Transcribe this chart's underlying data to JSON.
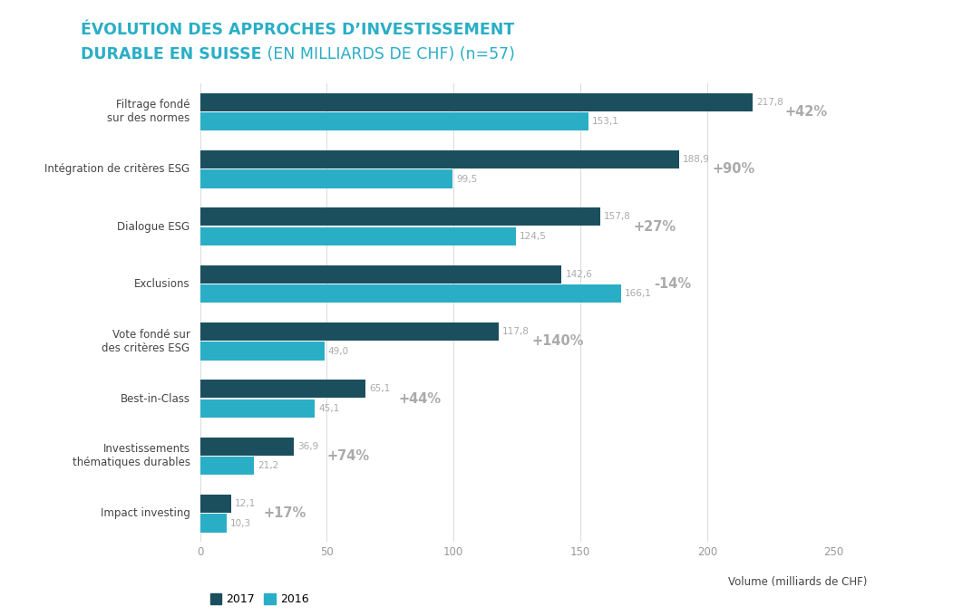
{
  "categories": [
    "Filtrage fondé\nsur des normes",
    "Intégration de critères ESG",
    "Dialogue ESG",
    "Exclusions",
    "Vote fondé sur\ndes critères ESG",
    "Best-in-Class",
    "Investissements\nthématiques durables",
    "Impact investing"
  ],
  "values_2017": [
    217.8,
    188.9,
    157.8,
    142.6,
    117.8,
    65.1,
    36.9,
    12.1
  ],
  "values_2016": [
    153.1,
    99.5,
    124.5,
    166.1,
    49.0,
    45.1,
    21.2,
    10.3
  ],
  "changes": [
    "+42%",
    "+90%",
    "+27%",
    "-14%",
    "+140%",
    "+44%",
    "+74%",
    "+17%"
  ],
  "color_2017": "#1b4f5e",
  "color_2016": "#2aaec6",
  "color_value": "#aaaaaa",
  "color_change": "#aaaaaa",
  "color_title": "#2aaec6",
  "color_label": "#444444",
  "color_grid": "#dddddd",
  "color_tick": "#999999",
  "background_color": "#ffffff",
  "xlim": [
    0,
    250
  ],
  "xticks": [
    0,
    50,
    100,
    150,
    200,
    250
  ],
  "bar_height": 0.32,
  "bar_gap": 0.02,
  "legend_2017": "2017",
  "legend_2016": "2016",
  "xlabel": "Volume (milliards de CHF)",
  "title_line1": "ÉVOLUTION DES APPROCHES D’INVESTISSEMENT",
  "title_line2_bold": "DURABLE EN SUISSE",
  "title_line2_normal": " (EN MILLIARDS DE CHF) (n=57)"
}
